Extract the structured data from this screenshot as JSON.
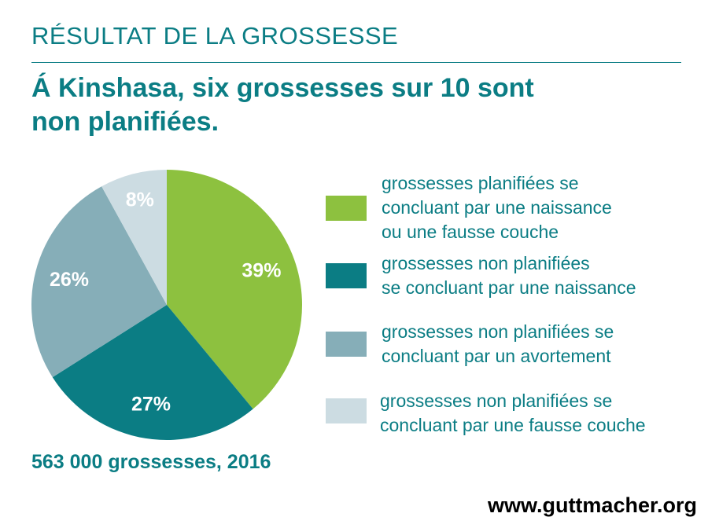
{
  "header": {
    "kicker": "RÉSULTAT DE LA GROSSESSE",
    "title_lines": [
      "Á Kinshasa, six grossesses sur 10 sont",
      "non planifiées."
    ]
  },
  "chart_data": {
    "type": "pie",
    "title": "Á Kinshasa, six grossesses sur 10 sont non planifiées.",
    "unit": "%",
    "slices": [
      {
        "label": "grossesses planifiées se concluant par une naissance ou une fausse couche",
        "value": 39,
        "display": "39%",
        "color": "#8dc13f",
        "label_color": "#ffffff"
      },
      {
        "label": "grossesses non planifiées se concluant par une naissance",
        "value": 27,
        "display": "27%",
        "color": "#0b7d84",
        "label_color": "#ffffff"
      },
      {
        "label": "grossesses non planifiées se concluant par un avortement",
        "value": 26,
        "display": "26%",
        "color": "#86aeb8",
        "label_color": "#ffffff"
      },
      {
        "label": "grossesses non planifiées se concluant par une fausse couche",
        "value": 8,
        "display": "8%",
        "color": "#ccdce2",
        "label_color": "#ffffff"
      }
    ],
    "start_angle_deg": 0,
    "direction": "clockwise",
    "legend_position": "right"
  },
  "legend": {
    "items": [
      {
        "lines": [
          "grossesses planifiées se",
          "concluant par une naissance",
          "ou une fausse couche"
        ],
        "color": "#8dc13f"
      },
      {
        "lines": [
          "grossesses non planifiées",
          "se concluant par une naissance"
        ],
        "color": "#0b7d84"
      },
      {
        "lines": [
          "grossesses non planifiées se",
          "concluant par un avortement"
        ],
        "color": "#86aeb8"
      },
      {
        "lines": [
          "grossesses non planifiées se",
          "concluant par une fausse couche"
        ],
        "color": "#ccdce2"
      }
    ]
  },
  "footnote": "563 000 grossesses, 2016",
  "source": "www.guttmacher.org"
}
